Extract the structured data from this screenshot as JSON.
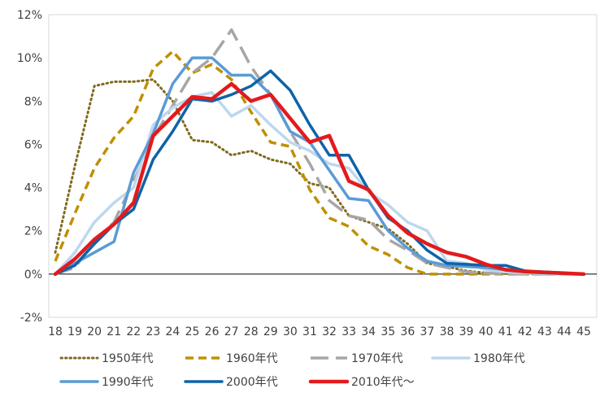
{
  "chart_data": {
    "type": "line",
    "title": "",
    "xlabel": "",
    "ylabel": "",
    "x": [
      18,
      19,
      20,
      21,
      22,
      23,
      24,
      25,
      26,
      27,
      28,
      29,
      30,
      31,
      32,
      33,
      34,
      35,
      36,
      37,
      38,
      39,
      40,
      41,
      42,
      43,
      44,
      45
    ],
    "x_labels": [
      "18",
      "19",
      "20",
      "21",
      "22",
      "23",
      "24",
      "25",
      "26",
      "27",
      "28",
      "29",
      "30",
      "31",
      "32",
      "33",
      "34",
      "35",
      "36",
      "37",
      "38",
      "39",
      "40",
      "41",
      "42",
      "43",
      "44",
      "45"
    ],
    "ylim": [
      -2,
      12
    ],
    "y_ticks": [
      -2,
      0,
      2,
      4,
      6,
      8,
      10,
      12
    ],
    "y_tick_labels": [
      "-2%",
      "0%",
      "2%",
      "4%",
      "6%",
      "8%",
      "10%",
      "12%"
    ],
    "legend_placement": "bottom",
    "grid": false,
    "series": [
      {
        "name": "1950年代",
        "color": "#7F6A1E",
        "dash": "dotted",
        "values": [
          1.0,
          5.0,
          8.7,
          8.9,
          8.9,
          9.0,
          8.0,
          6.2,
          6.1,
          5.5,
          5.7,
          5.3,
          5.1,
          4.2,
          4.0,
          2.7,
          2.4,
          2.1,
          1.4,
          0.5,
          0.35,
          0.15,
          0.05,
          0.02,
          0.01,
          0.0,
          0.0,
          0.0
        ]
      },
      {
        "name": "1960年代",
        "color": "#BF9000",
        "dash": "dashed",
        "values": [
          0.6,
          2.8,
          4.9,
          6.3,
          7.3,
          9.5,
          10.3,
          9.3,
          9.7,
          9.0,
          7.5,
          6.1,
          5.9,
          3.9,
          2.6,
          2.2,
          1.3,
          0.9,
          0.3,
          0.0,
          0.0,
          0.0,
          0.0,
          0.0,
          0.0,
          0.0,
          0.0,
          0.0
        ]
      },
      {
        "name": "1970年代",
        "color": "#A6A6A6",
        "dash": "longdash",
        "values": [
          0.0,
          0.3,
          1.5,
          2.4,
          4.3,
          6.3,
          7.8,
          9.3,
          10.0,
          11.3,
          9.6,
          8.3,
          6.6,
          5.1,
          3.4,
          2.7,
          2.5,
          1.6,
          1.1,
          0.5,
          0.3,
          0.1,
          0.05,
          0.0,
          0.0,
          0.0,
          0.0,
          0.0
        ]
      },
      {
        "name": "1980年代",
        "color": "#BDD7EE",
        "dash": "solid",
        "values": [
          0.0,
          1.0,
          2.4,
          3.3,
          4.0,
          6.9,
          7.7,
          8.2,
          8.4,
          7.3,
          7.8,
          6.9,
          6.1,
          5.7,
          5.1,
          4.9,
          3.8,
          3.2,
          2.4,
          2.0,
          0.6,
          0.5,
          0.2,
          0.1,
          0.05,
          0.02,
          0.0,
          0.0
        ]
      },
      {
        "name": "1990年代",
        "color": "#5B9BD5",
        "dash": "solid",
        "values": [
          0.0,
          0.5,
          1.0,
          1.5,
          4.7,
          6.5,
          8.8,
          10.0,
          10.0,
          9.2,
          9.2,
          8.3,
          6.6,
          6.1,
          4.8,
          3.5,
          3.4,
          2.0,
          1.2,
          0.6,
          0.4,
          0.35,
          0.3,
          0.2,
          0.1,
          0.05,
          0.02,
          0.0
        ]
      },
      {
        "name": "2000年代",
        "color": "#0E63A8",
        "dash": "solid",
        "values": [
          0.0,
          0.4,
          1.4,
          2.3,
          3.0,
          5.3,
          6.6,
          8.1,
          8.0,
          8.3,
          8.7,
          9.4,
          8.5,
          6.9,
          5.5,
          5.5,
          3.9,
          2.6,
          2.0,
          1.1,
          0.5,
          0.45,
          0.4,
          0.4,
          0.15,
          0.1,
          0.05,
          0.0
        ]
      },
      {
        "name": "2010年代〜",
        "color": "#E31A1C",
        "dash": "solid",
        "values": [
          0.0,
          0.7,
          1.6,
          2.3,
          3.3,
          6.4,
          7.3,
          8.2,
          8.1,
          8.8,
          8.0,
          8.3,
          7.2,
          6.1,
          6.4,
          4.3,
          3.9,
          2.7,
          1.9,
          1.4,
          1.0,
          0.8,
          0.45,
          0.2,
          0.12,
          0.08,
          0.04,
          0.0
        ]
      }
    ]
  }
}
